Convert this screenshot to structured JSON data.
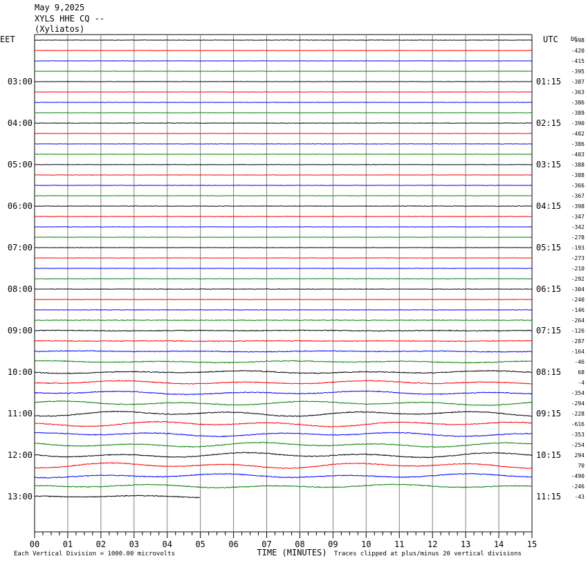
{
  "header": {
    "date": "May 9,2025",
    "station": "XYLS HHE CQ --",
    "location": "(Xyliatos)"
  },
  "chart_data": {
    "type": "line",
    "description_kind": "helicorder",
    "left_timezone": "EET",
    "right_timezone": "UTC",
    "dc_label": "DC",
    "xlabel": "TIME (MINUTES)",
    "x_ticks": [
      "00",
      "01",
      "02",
      "03",
      "04",
      "05",
      "06",
      "07",
      "08",
      "09",
      "10",
      "11",
      "12",
      "13",
      "14",
      "15"
    ],
    "xlim": [
      0,
      15
    ],
    "left_hour_labels": [
      "03:00",
      "04:00",
      "05:00",
      "06:00",
      "07:00",
      "08:00",
      "09:00",
      "10:00",
      "11:00",
      "12:00",
      "13:00"
    ],
    "right_hour_labels": [
      "01:15",
      "02:15",
      "03:15",
      "04:15",
      "05:15",
      "06:15",
      "07:15",
      "08:15",
      "09:15",
      "10:15",
      "11:15"
    ],
    "dc_offsets": [
      "-398",
      "-420",
      "-415",
      "-395",
      "-387",
      "-363",
      "-386",
      "-389",
      "-390",
      "-402",
      "-386",
      "-403",
      "-388",
      "-388",
      "-366",
      "-367",
      "-398",
      "-347",
      "-342",
      "-278",
      "-193",
      "-273",
      "-210",
      "-292",
      "-304",
      "-240",
      "-146",
      "-264",
      "-126",
      "-287",
      "-164",
      "-46",
      "68",
      "-4",
      "-354",
      "-294",
      "-228",
      "-616",
      "-353",
      "-254",
      "294",
      "70",
      "-490",
      "-246",
      "-43"
    ],
    "trace_colors": [
      "#000000",
      "#ff0000",
      "#0000ff",
      "#008000"
    ],
    "trace_amplitude": [
      0.3,
      0.3,
      0.3,
      0.3,
      0.3,
      0.3,
      0.3,
      0.3,
      0.35,
      0.3,
      0.3,
      0.3,
      0.35,
      0.3,
      0.3,
      0.3,
      0.4,
      0.35,
      0.3,
      0.3,
      0.3,
      0.3,
      0.3,
      0.35,
      0.4,
      0.35,
      0.35,
      0.5,
      0.8,
      0.7,
      1.0,
      1.4,
      1.8,
      2.2,
      2.2,
      2.5,
      3.0,
      3.0,
      2.5,
      2.8,
      3.0,
      3.2,
      2.5,
      2.2,
      1.6
    ],
    "last_trace_end_minute": 5,
    "footer_left": "Each Vertical Division = 1000.00 microvolts",
    "footer_right": "Traces clipped at plus/minus 20 vertical divisions"
  }
}
